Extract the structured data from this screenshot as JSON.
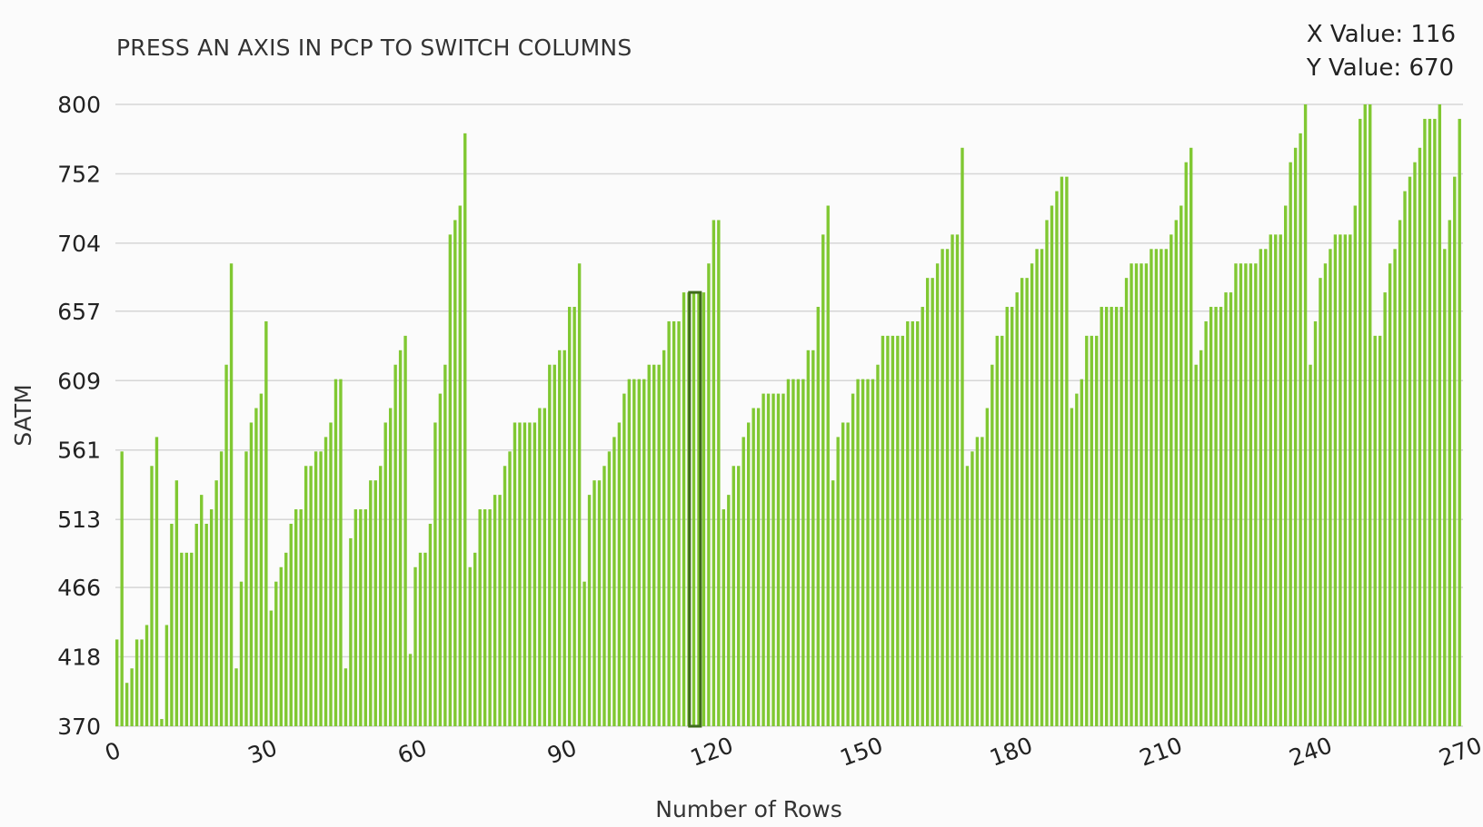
{
  "header": {
    "instruction": "PRESS AN AXIS IN PCP TO SWITCH COLUMNS"
  },
  "readout": {
    "x_label": "X Value:",
    "x_value": "116",
    "y_label": "Y Value:",
    "y_value": "670"
  },
  "colors": {
    "bar": "#80c832",
    "bar_highlight": "#3e6a1c",
    "grid": "#d6d6d6"
  },
  "chart_data": {
    "type": "bar",
    "xlabel": "Number of Rows",
    "ylabel": "SATM",
    "ylim": [
      370,
      800
    ],
    "xlim": [
      0,
      270
    ],
    "y_ticks": [
      "370",
      "418",
      "466",
      "513",
      "561",
      "609",
      "657",
      "704",
      "752",
      "800"
    ],
    "x_ticks": [
      "0",
      "30",
      "60",
      "90",
      "120",
      "150",
      "180",
      "210",
      "240",
      "270"
    ],
    "grid": "horizontal",
    "highlight_index": 116,
    "values": [
      430,
      560,
      400,
      410,
      430,
      430,
      440,
      550,
      570,
      375,
      440,
      510,
      540,
      490,
      490,
      490,
      510,
      530,
      510,
      520,
      540,
      560,
      620,
      690,
      410,
      470,
      560,
      580,
      590,
      600,
      650,
      450,
      470,
      480,
      490,
      510,
      520,
      520,
      550,
      550,
      560,
      560,
      570,
      580,
      610,
      610,
      410,
      500,
      520,
      520,
      520,
      540,
      540,
      550,
      580,
      590,
      620,
      630,
      640,
      420,
      480,
      490,
      490,
      510,
      580,
      600,
      620,
      710,
      720,
      730,
      780,
      480,
      490,
      520,
      520,
      520,
      530,
      530,
      550,
      560,
      580,
      580,
      580,
      580,
      580,
      590,
      590,
      620,
      620,
      630,
      630,
      660,
      660,
      690,
      470,
      530,
      540,
      540,
      550,
      560,
      570,
      580,
      600,
      610,
      610,
      610,
      610,
      620,
      620,
      620,
      630,
      650,
      650,
      650,
      670,
      670,
      670,
      670,
      670,
      690,
      720,
      720,
      520,
      530,
      550,
      550,
      570,
      580,
      590,
      590,
      600,
      600,
      600,
      600,
      600,
      610,
      610,
      610,
      610,
      630,
      630,
      660,
      710,
      730,
      540,
      570,
      580,
      580,
      600,
      610,
      610,
      610,
      610,
      620,
      640,
      640,
      640,
      640,
      640,
      650,
      650,
      650,
      660,
      680,
      680,
      690,
      700,
      700,
      710,
      710,
      770,
      550,
      560,
      570,
      570,
      590,
      620,
      640,
      640,
      660,
      660,
      670,
      680,
      680,
      690,
      700,
      700,
      720,
      730,
      740,
      750,
      750,
      590,
      600,
      610,
      640,
      640,
      640,
      660,
      660,
      660,
      660,
      660,
      680,
      690,
      690,
      690,
      690,
      700,
      700,
      700,
      700,
      710,
      720,
      730,
      760,
      770,
      620,
      630,
      650,
      660,
      660,
      660,
      670,
      670,
      690,
      690,
      690,
      690,
      690,
      700,
      700,
      710,
      710,
      710,
      730,
      760,
      770,
      780,
      800,
      620,
      650,
      680,
      690,
      700,
      710,
      710,
      710,
      710,
      730,
      790,
      800,
      800,
      640,
      640,
      670,
      690,
      700,
      720,
      740,
      750,
      760,
      770,
      790,
      790,
      790,
      800,
      700,
      720,
      750,
      790
    ]
  }
}
